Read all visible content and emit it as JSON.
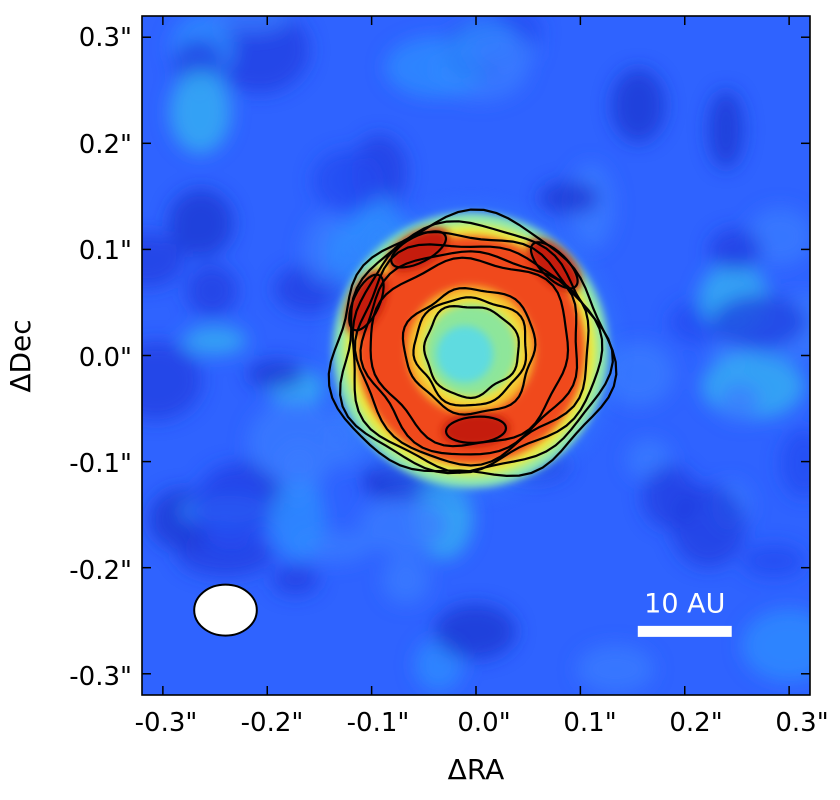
{
  "chart_data": {
    "type": "heatmap",
    "title": "",
    "xlabel": "ΔRA",
    "ylabel": "ΔDec",
    "xlim": [
      -0.32,
      0.32
    ],
    "ylim": [
      -0.32,
      0.32
    ],
    "x_ticks": [
      -0.3,
      -0.2,
      -0.1,
      0.0,
      0.1,
      0.2,
      0.3
    ],
    "y_ticks": [
      -0.3,
      -0.2,
      -0.1,
      0.0,
      0.1,
      0.2,
      0.3
    ],
    "x_tick_labels": [
      "-0.3\"",
      "-0.2\"",
      "-0.1\"",
      "0.0\"",
      "0.1\"",
      "0.2\"",
      "0.3\""
    ],
    "y_tick_labels": [
      "0.3\"",
      "0.2\"",
      "0.1\"",
      "0.0\"",
      "-0.1\"",
      "-0.2\"",
      "-0.3\""
    ],
    "colormap": "jet",
    "colors": {
      "background": "#2e5cff",
      "contour": "#000000",
      "beam": "#ffffff",
      "scalebar": "#ffffff"
    },
    "scalebar": {
      "label": "10 AU",
      "x_start": 0.155,
      "x_end": 0.245,
      "y": -0.26
    },
    "beam": {
      "center": [
        -0.24,
        -0.24
      ],
      "major": 0.06,
      "minor": 0.048
    },
    "ring": {
      "center": [
        -0.005,
        0.005
      ],
      "peak_radius": 0.085,
      "width": 0.04,
      "bright_arcs": [
        {
          "position": "north-west",
          "ra": -0.055,
          "dec": 0.1
        },
        {
          "position": "west",
          "ra": -0.105,
          "dec": 0.05
        },
        {
          "position": "south",
          "ra": 0.0,
          "dec": -0.07
        },
        {
          "position": "north-east",
          "ra": 0.075,
          "dec": 0.085
        }
      ]
    },
    "contour_levels": 7
  }
}
